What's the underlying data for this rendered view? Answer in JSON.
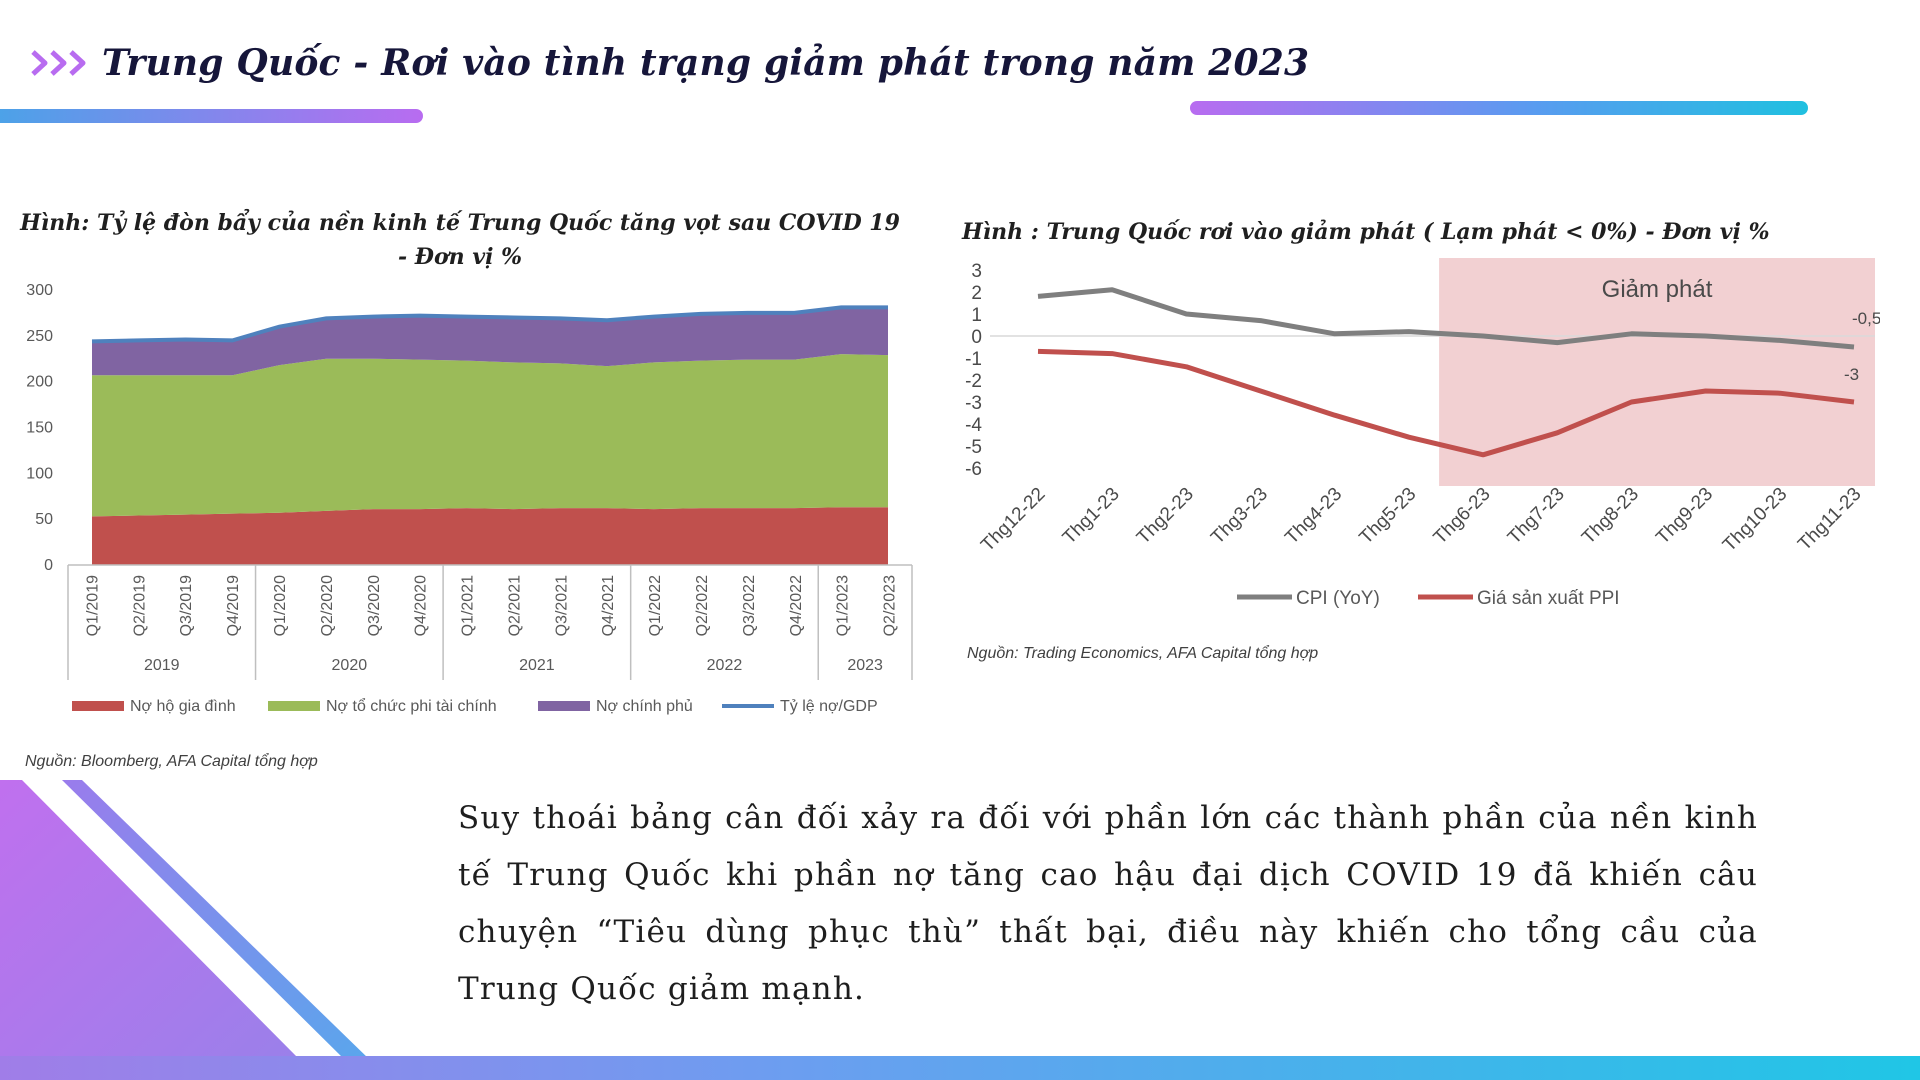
{
  "header": {
    "title": "Trung Quốc - Rơi vào tình trạng giảm phát trong năm 2023",
    "chevron_icon": "triple-chevron-right-icon",
    "accent_colors": [
      "#b86cf0",
      "#4aa3e8",
      "#20c0e0"
    ]
  },
  "chart_data": [
    {
      "type": "area",
      "stacked": true,
      "title": "Hình: Tỷ lệ đòn bẩy của nền kinh tế Trung Quốc tăng vọt sau COVID 19 - Đơn vị %",
      "categories": [
        "Q1/2019",
        "Q2/2019",
        "Q3/2019",
        "Q4/2019",
        "Q1/2020",
        "Q2/2020",
        "Q3/2020",
        "Q4/2020",
        "Q1/2021",
        "Q2/2021",
        "Q3/2021",
        "Q4/2021",
        "Q1/2022",
        "Q2/2022",
        "Q3/2022",
        "Q4/2022",
        "Q1/2023",
        "Q2/2023"
      ],
      "year_groups": [
        {
          "label": "2019",
          "span": 4
        },
        {
          "label": "2020",
          "span": 4
        },
        {
          "label": "2021",
          "span": 4
        },
        {
          "label": "2022",
          "span": 4
        },
        {
          "label": "2023",
          "span": 2
        }
      ],
      "series": [
        {
          "name": "Nợ hộ gia đình",
          "color": "#c0504d",
          "values": [
            53,
            54,
            55,
            56,
            57,
            59,
            61,
            61,
            62,
            61,
            62,
            62,
            61,
            62,
            62,
            62,
            63,
            63
          ]
        },
        {
          "name": "Nợ tổ chức phi tài chính",
          "color": "#9bbb59",
          "values": [
            154,
            153,
            152,
            151,
            161,
            166,
            164,
            163,
            161,
            160,
            158,
            155,
            160,
            161,
            162,
            162,
            167,
            166
          ]
        },
        {
          "name": "Nợ chính phủ",
          "color": "#8064a2",
          "values": [
            37,
            38,
            39,
            38,
            42,
            44,
            46,
            48,
            48,
            49,
            49,
            50,
            50,
            51,
            51,
            51,
            51,
            52
          ]
        }
      ],
      "line_series": {
        "name": "Tỷ lệ nợ/GDP",
        "color": "#4f81bd",
        "values": [
          244,
          245,
          246,
          245,
          260,
          269,
          271,
          272,
          271,
          270,
          269,
          267,
          271,
          274,
          275,
          275,
          281,
          281
        ]
      },
      "y_ticks": [
        0,
        50,
        100,
        150,
        200,
        250,
        300
      ],
      "ylim": [
        0,
        300
      ],
      "legend_position": "bottom",
      "source": "Nguồn: Bloomberg, AFA Capital tổng hợp"
    },
    {
      "type": "line",
      "title": "Hình : Trung Quốc rơi vào giảm phát ( Lạm phát < 0%) - Đơn vị %",
      "categories": [
        "Thg12-22",
        "Thg1-23",
        "Thg2-23",
        "Thg3-23",
        "Thg4-23",
        "Thg5-23",
        "Thg6-23",
        "Thg7-23",
        "Thg8-23",
        "Thg9-23",
        "Thg10-23",
        "Thg11-23"
      ],
      "series": [
        {
          "name": "CPI (YoY)",
          "color": "#7f7f7f",
          "values": [
            1.8,
            2.1,
            1.0,
            0.7,
            0.1,
            0.2,
            0.0,
            -0.3,
            0.1,
            0.0,
            -0.2,
            -0.5
          ]
        },
        {
          "name": "Giá sản xuất PPI",
          "color": "#c0504d",
          "values": [
            -0.7,
            -0.8,
            -1.4,
            -2.5,
            -3.6,
            -4.6,
            -5.4,
            -4.4,
            -3.0,
            -2.5,
            -2.6,
            -3.0
          ]
        }
      ],
      "y_ticks": [
        3,
        2,
        1,
        0,
        -1,
        -2,
        -3,
        -4,
        -5,
        -6
      ],
      "ylim": [
        -6,
        3
      ],
      "shaded_region": {
        "label": "Giảm phát",
        "from": "Thg6-23",
        "to": "Thg11-23",
        "color": "#f2d0d2"
      },
      "data_labels": [
        "-0,5",
        "-3"
      ],
      "legend_position": "bottom",
      "source": "Nguồn: Trading Economics, AFA Capital tổng hợp"
    }
  ],
  "body": {
    "paragraph": "Suy thoái bảng cân đối xảy ra đối với phần lớn các thành phần của nền kinh tế Trung Quốc khi phần nợ tăng cao hậu đại dịch COVID 19 đã khiến câu chuyện “Tiêu dùng phục thù” thất bại, điều này khiến cho tổng cầu của Trung Quốc giảm mạnh."
  }
}
